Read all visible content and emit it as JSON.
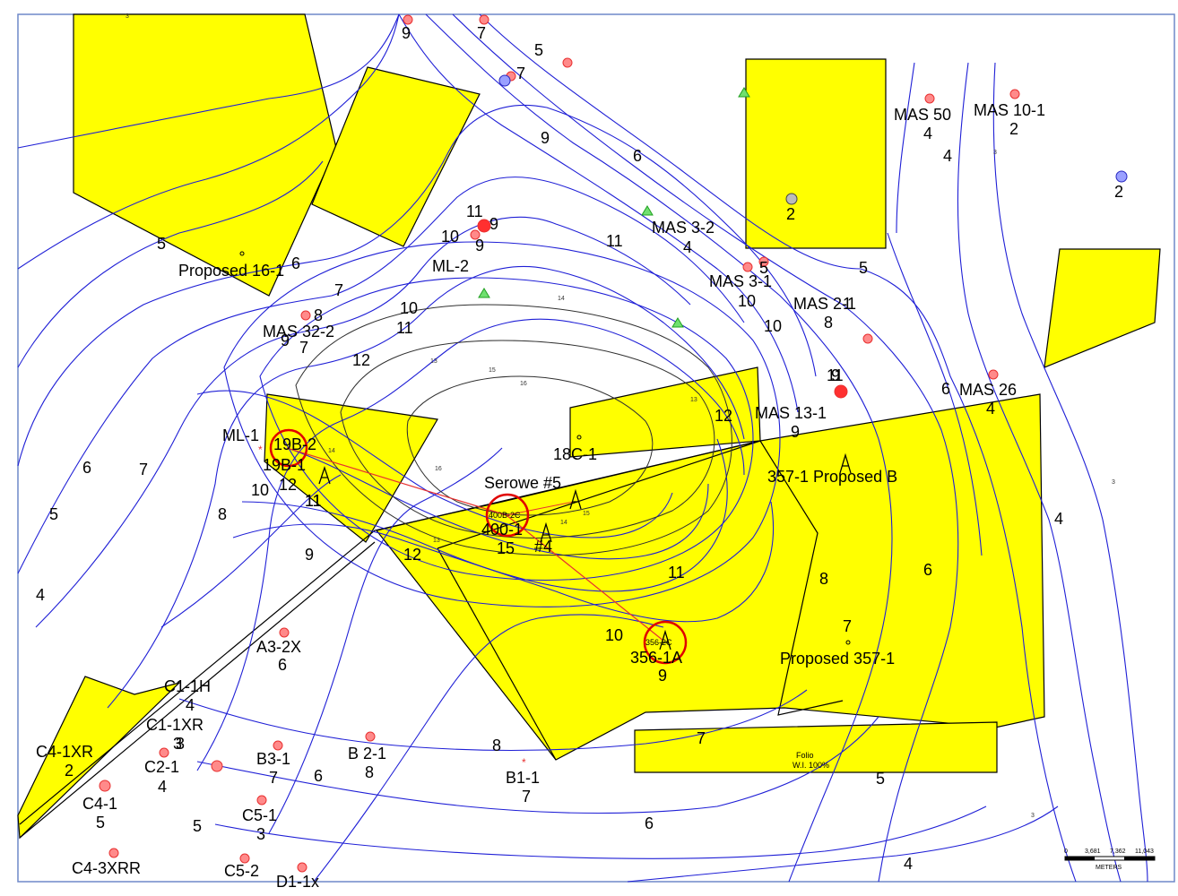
{
  "contour_labels": {
    "c5a": "5",
    "c7a": "7",
    "c9a": "9",
    "c6a": "6",
    "c11a": "11",
    "c5b": "5",
    "c6b": "6",
    "c7b": "7",
    "c8a": "8",
    "c10a": "10",
    "c11b": "11",
    "c12a": "12",
    "c6c": "6",
    "c7c": "7",
    "c10b": "10",
    "c11c": "11",
    "c5c": "5",
    "c8b": "8",
    "c9b": "9",
    "c4a": "4",
    "c12b": "12",
    "c12c": "12",
    "c11d": "11",
    "c10c": "10",
    "c9c": "9",
    "c8c": "8",
    "c7d": "7",
    "c6d": "6",
    "c7e": "7",
    "c8d": "8",
    "c6e": "6",
    "c5d": "5",
    "c4b": "4",
    "c4c": "4",
    "c5e": "5",
    "c6f": "6",
    "c4d": "4",
    "c5f": "5",
    "c10d": "10",
    "c9d": "9",
    "c10e": "10",
    "c11e": "11",
    "c6g": "6",
    "c5g": "5"
  },
  "small_contour_labels": {
    "s13a": "13",
    "s14a": "14",
    "s15a": "15",
    "s16a": "16",
    "s13b": "13",
    "s14b": "14",
    "s15b": "15",
    "s16b": "16",
    "s3a": "3",
    "s3b": "3",
    "s3c": "3",
    "s3d": "3",
    "s13c": "13"
  },
  "wells": [
    {
      "label": "Proposed 16-1",
      "value": ""
    },
    {
      "label": "ML-2",
      "value": ""
    },
    {
      "label": "MAS 32-2",
      "value": "9"
    },
    {
      "label": "MAS 3-2",
      "value": "4"
    },
    {
      "label": "MAS 3-1",
      "value": "10"
    },
    {
      "label": "MAS 2-1",
      "value": "8"
    },
    {
      "label": "MAS 50",
      "value": "4"
    },
    {
      "label": "MAS 10-1",
      "value": "2"
    },
    {
      "label": "MAS 13-1",
      "value": "9"
    },
    {
      "label": "MAS 26",
      "value": "4"
    },
    {
      "label": "ML-1",
      "value": ""
    },
    {
      "label": "19B-2",
      "value": ""
    },
    {
      "label": "19B-1",
      "value": "12"
    },
    {
      "label": "18C-1",
      "value": ""
    },
    {
      "label": "Serowe #5",
      "value": ""
    },
    {
      "label": "400-1",
      "value": "15"
    },
    {
      "label": "#4",
      "value": ""
    },
    {
      "label": "357-1 Proposed B",
      "value": ""
    },
    {
      "label": "356-1A",
      "value": "9"
    },
    {
      "label": "Proposed 357-1",
      "value": ""
    },
    {
      "label": "A3-2X",
      "value": "6"
    },
    {
      "label": "C1-1H",
      "value": "4"
    },
    {
      "label": "C1-1XR",
      "value": "3"
    },
    {
      "label": "C4-1XR",
      "value": "2"
    },
    {
      "label": "C2-1",
      "value": "4"
    },
    {
      "label": "C4-1",
      "value": "5"
    },
    {
      "label": "B3-1",
      "value": "7"
    },
    {
      "label": "B 2-1",
      "value": "8"
    },
    {
      "label": "C5-1",
      "value": "3"
    },
    {
      "label": "B1-1",
      "value": "7"
    },
    {
      "label": "C4-3XRR",
      "value": ""
    },
    {
      "label": "C5-2",
      "value": ""
    },
    {
      "label": "D1-1x",
      "value": ""
    }
  ],
  "misc_values": {
    "top9": "9",
    "top7": "7",
    "ml2_11": "11",
    "ml2_9a": "9",
    "ml2_10": "10",
    "ml2_9b": "9",
    "mas32_8": "8",
    "mas32_7": "7",
    "mas13_11": "11",
    "mas13_9": "9",
    "mas26_6": "6",
    "right2": "2",
    "box2": "2",
    "mas31_5": "5",
    "mas21_1": "1",
    "ml1_11": "11",
    "b31_6": "6",
    "c3": "3",
    "tiny400": "400B-2C",
    "tiny356": "356-2C"
  },
  "folio": {
    "line1": "Folio",
    "line2": "W.I. 100%"
  },
  "scale": {
    "t0": "0",
    "t1": "3,681",
    "t2": "7,362",
    "t3": "11,043",
    "unit": "METERS"
  },
  "colors": {
    "lease": "#ffff00",
    "contour": "#1f1fd6",
    "well": "#e83030",
    "frame": "#6f89c9"
  }
}
